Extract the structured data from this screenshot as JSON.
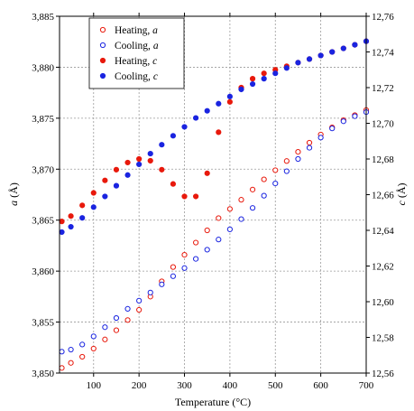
{
  "chart_data": {
    "type": "scatter",
    "xlabel": "Temperature (°C)",
    "ylabel_left": "a (Å)",
    "ylabel_left_var": "a",
    "ylabel_left_unit": " (Å)",
    "ylabel_right": "c (Å)",
    "ylabel_right_var": "c",
    "ylabel_right_unit": " (Å)",
    "xlim": [
      25,
      700
    ],
    "ylim_left": [
      3.85,
      3.885
    ],
    "ylim_right": [
      12.56,
      12.76
    ],
    "grid": true,
    "legend_position": "top-left",
    "x_ticks": [
      {
        "value": 100,
        "label": "100"
      },
      {
        "value": 200,
        "label": "200"
      },
      {
        "value": 300,
        "label": "300"
      },
      {
        "value": 400,
        "label": "400"
      },
      {
        "value": 500,
        "label": "500"
      },
      {
        "value": 600,
        "label": "600"
      },
      {
        "value": 700,
        "label": "700"
      }
    ],
    "y_left_ticks": [
      {
        "value": 3.85,
        "label": "3,850"
      },
      {
        "value": 3.855,
        "label": "3,855"
      },
      {
        "value": 3.86,
        "label": "3,860"
      },
      {
        "value": 3.865,
        "label": "3,865"
      },
      {
        "value": 3.87,
        "label": "3,870"
      },
      {
        "value": 3.875,
        "label": "3,875"
      },
      {
        "value": 3.88,
        "label": "3,880"
      },
      {
        "value": 3.885,
        "label": "3,885"
      }
    ],
    "y_right_ticks": [
      {
        "value": 12.56,
        "label": "12,56"
      },
      {
        "value": 12.58,
        "label": "12,58"
      },
      {
        "value": 12.6,
        "label": "12,60"
      },
      {
        "value": 12.62,
        "label": "12,62"
      },
      {
        "value": 12.64,
        "label": "12,64"
      },
      {
        "value": 12.66,
        "label": "12,66"
      },
      {
        "value": 12.68,
        "label": "12,68"
      },
      {
        "value": 12.7,
        "label": "12,70"
      },
      {
        "value": 12.72,
        "label": "12,72"
      },
      {
        "value": 12.74,
        "label": "12,74"
      },
      {
        "value": 12.76,
        "label": "12,76"
      }
    ],
    "series": [
      {
        "name": "Heating, a",
        "name_prefix": "Heating, ",
        "name_var": "a",
        "axis": "left",
        "marker": "open-circle",
        "color": "#e8190c",
        "x": [
          30,
          50,
          75,
          100,
          125,
          150,
          175,
          200,
          225,
          250,
          275,
          300,
          325,
          350,
          375,
          400,
          425,
          450,
          475,
          500,
          525,
          550,
          575,
          600,
          625,
          650,
          675,
          700
        ],
        "y": [
          3.8505,
          3.851,
          3.8516,
          3.8524,
          3.8533,
          3.8542,
          3.8552,
          3.8562,
          3.8575,
          3.859,
          3.8604,
          3.8616,
          3.8628,
          3.864,
          3.8652,
          3.8661,
          3.867,
          3.868,
          3.869,
          3.8699,
          3.8708,
          3.8717,
          3.8726,
          3.8734,
          3.8741,
          3.8748,
          3.8753,
          3.8758
        ]
      },
      {
        "name": "Cooling, a",
        "name_prefix": "Cooling, ",
        "name_var": "a",
        "axis": "left",
        "marker": "open-circle",
        "color": "#1a24e0",
        "x": [
          30,
          50,
          75,
          100,
          125,
          150,
          175,
          200,
          225,
          250,
          275,
          300,
          325,
          350,
          375,
          400,
          425,
          450,
          475,
          500,
          525,
          550,
          575,
          600,
          625,
          650,
          675,
          700
        ],
        "y": [
          3.8521,
          3.8523,
          3.8528,
          3.8536,
          3.8545,
          3.8554,
          3.8563,
          3.8571,
          3.8579,
          3.8587,
          3.8595,
          3.8603,
          3.8612,
          3.8621,
          3.8631,
          3.8641,
          3.8651,
          3.8662,
          3.8674,
          3.8686,
          3.8698,
          3.871,
          3.8721,
          3.8731,
          3.874,
          3.8747,
          3.8752,
          3.8756
        ]
      },
      {
        "name": "Heating, c",
        "name_prefix": "Heating, ",
        "name_var": "c",
        "axis": "right",
        "marker": "filled-circle",
        "color": "#e8190c",
        "x": [
          30,
          50,
          75,
          100,
          125,
          150,
          175,
          200,
          225,
          250,
          275,
          300,
          325,
          350,
          375,
          400,
          425,
          450,
          475,
          500,
          525,
          550,
          575,
          600,
          625,
          650,
          675,
          700
        ],
        "y": [
          12.645,
          12.648,
          12.654,
          12.661,
          12.668,
          12.674,
          12.678,
          12.68,
          12.679,
          12.674,
          12.666,
          12.659,
          12.659,
          12.672,
          12.695,
          12.712,
          12.72,
          12.725,
          12.728,
          12.73,
          12.732,
          12.734,
          12.736,
          12.738,
          12.74,
          12.742,
          12.744,
          12.746
        ]
      },
      {
        "name": "Cooling, c",
        "name_prefix": "Cooling, ",
        "name_var": "c",
        "axis": "right",
        "marker": "filled-circle",
        "color": "#1a24e0",
        "x": [
          30,
          50,
          75,
          100,
          125,
          150,
          175,
          200,
          225,
          250,
          275,
          300,
          325,
          350,
          375,
          400,
          425,
          450,
          475,
          500,
          525,
          550,
          575,
          600,
          625,
          650,
          675,
          700
        ],
        "y": [
          12.639,
          12.642,
          12.647,
          12.653,
          12.659,
          12.665,
          12.671,
          12.677,
          12.683,
          12.688,
          12.693,
          12.698,
          12.703,
          12.707,
          12.711,
          12.715,
          12.719,
          12.722,
          12.725,
          12.728,
          12.731,
          12.734,
          12.736,
          12.738,
          12.74,
          12.742,
          12.744,
          12.746
        ]
      }
    ]
  }
}
